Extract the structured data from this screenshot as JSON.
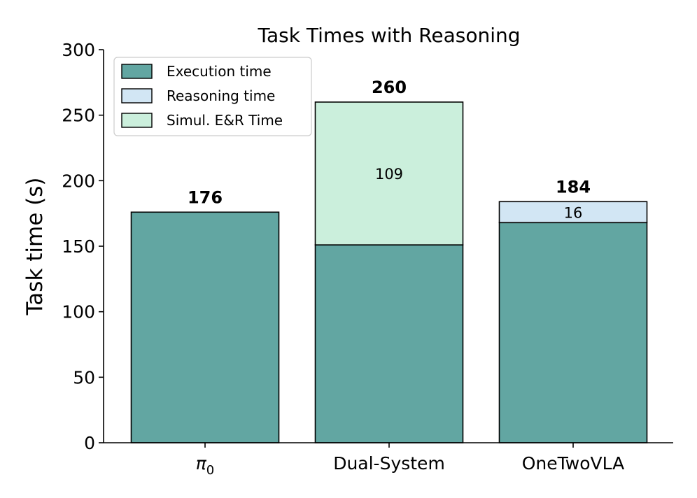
{
  "chart_data": {
    "type": "bar",
    "title": "Task Times with Reasoning",
    "ylabel": "Task time (s)",
    "xlabel": "",
    "ylim": [
      0,
      300
    ],
    "yticks": [
      0,
      50,
      100,
      150,
      200,
      250,
      300
    ],
    "categories": [
      {
        "base": "π",
        "sub": "0"
      },
      {
        "base": "Dual-System",
        "sub": ""
      },
      {
        "base": "OneTwoVLA",
        "sub": ""
      }
    ],
    "series": [
      {
        "name": "Execution time",
        "color": "#62a6a2",
        "values": [
          176,
          151,
          168
        ]
      },
      {
        "name": "Reasoning time",
        "color": "#d2e6f4",
        "values": [
          0,
          0,
          16
        ]
      },
      {
        "name": "Simul. E&R Time",
        "color": "#cbefdc",
        "values": [
          0,
          109,
          0
        ]
      }
    ],
    "totals": [
      "176",
      "260",
      "184"
    ],
    "segment_labels": [
      {
        "category_index": 1,
        "series_index": 2,
        "text": "109"
      },
      {
        "category_index": 2,
        "series_index": 1,
        "text": "16"
      }
    ],
    "legend_position": "upper-left",
    "grid": false
  }
}
